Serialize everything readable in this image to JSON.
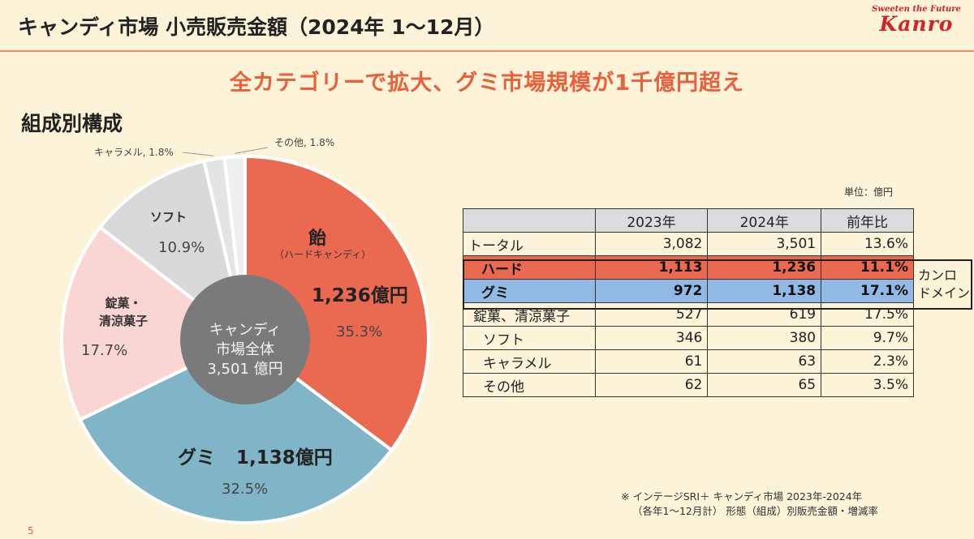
{
  "header": {
    "title": "キャンディ市場 小売販売金額（2024年 1〜12月）",
    "brand_tagline": "Sweeten the Future",
    "brand_name": "Kanro"
  },
  "headline": "全カテゴリーで拡大、グミ市場規模が1千億円超え",
  "section_title": "組成別構成",
  "colors": {
    "hard": "#e96a50",
    "gummy": "#7fb5c6",
    "tablet": "#f9d5d3",
    "soft": "#d9d9d9",
    "caramel": "#e4e4e4",
    "other": "#efefef",
    "center": "#7a7a7a",
    "accent": "#e8603c"
  },
  "chart_data": {
    "type": "pie",
    "donut": true,
    "center_label": [
      "キャンディ",
      "市場全体",
      "3,501 億円"
    ],
    "slices": [
      {
        "name": "飴",
        "sublabel": "（ハードキャンディ）",
        "amount": "1,236億円",
        "pct_label": "35.3%",
        "value": 35.3
      },
      {
        "name": "グミ",
        "amount": "1,138億円",
        "pct_label": "32.5%",
        "value": 32.5
      },
      {
        "name": "錠菓・清涼菓子",
        "name_lines": [
          "錠菓・",
          "清涼菓子"
        ],
        "pct_label": "17.7%",
        "value": 17.7
      },
      {
        "name": "ソフト",
        "pct_label": "10.9%",
        "value": 10.9
      },
      {
        "name": "キャラメル",
        "callout": "キャラメル, 1.8%",
        "value": 1.8
      },
      {
        "name": "その他",
        "callout": "その他, 1.8%",
        "value": 1.8
      }
    ]
  },
  "table": {
    "unit": "単位：億円",
    "headers": [
      "",
      "2023年",
      "2024年",
      "前年比"
    ],
    "rows": [
      {
        "name": "トータル",
        "v2023": "3,082",
        "v2024": "3,501",
        "yoy": "13.6%"
      },
      {
        "name": "ハード",
        "v2023": "1,113",
        "v2024": "1,236",
        "yoy": "11.1%"
      },
      {
        "name": "グミ",
        "v2023": "972",
        "v2024": "1,138",
        "yoy": "17.1%"
      },
      {
        "name": "錠菓、清涼菓子",
        "v2023": "527",
        "v2024": "619",
        "yoy": "17.5%"
      },
      {
        "name": "ソフト",
        "v2023": "346",
        "v2024": "380",
        "yoy": "9.7%"
      },
      {
        "name": "キャラメル",
        "v2023": "61",
        "v2024": "63",
        "yoy": "2.3%"
      },
      {
        "name": "その他",
        "v2023": "62",
        "v2024": "65",
        "yoy": "3.5%"
      }
    ],
    "domain_label_lines": [
      "カンロ",
      "ドメイン"
    ]
  },
  "source_note": {
    "line1": "※ インテージSRI＋ キャンディ市場 2023年-2024年",
    "line2": "（各年1〜12月計） 形態（組成）別販売金額・増減率"
  },
  "page_number": "5"
}
